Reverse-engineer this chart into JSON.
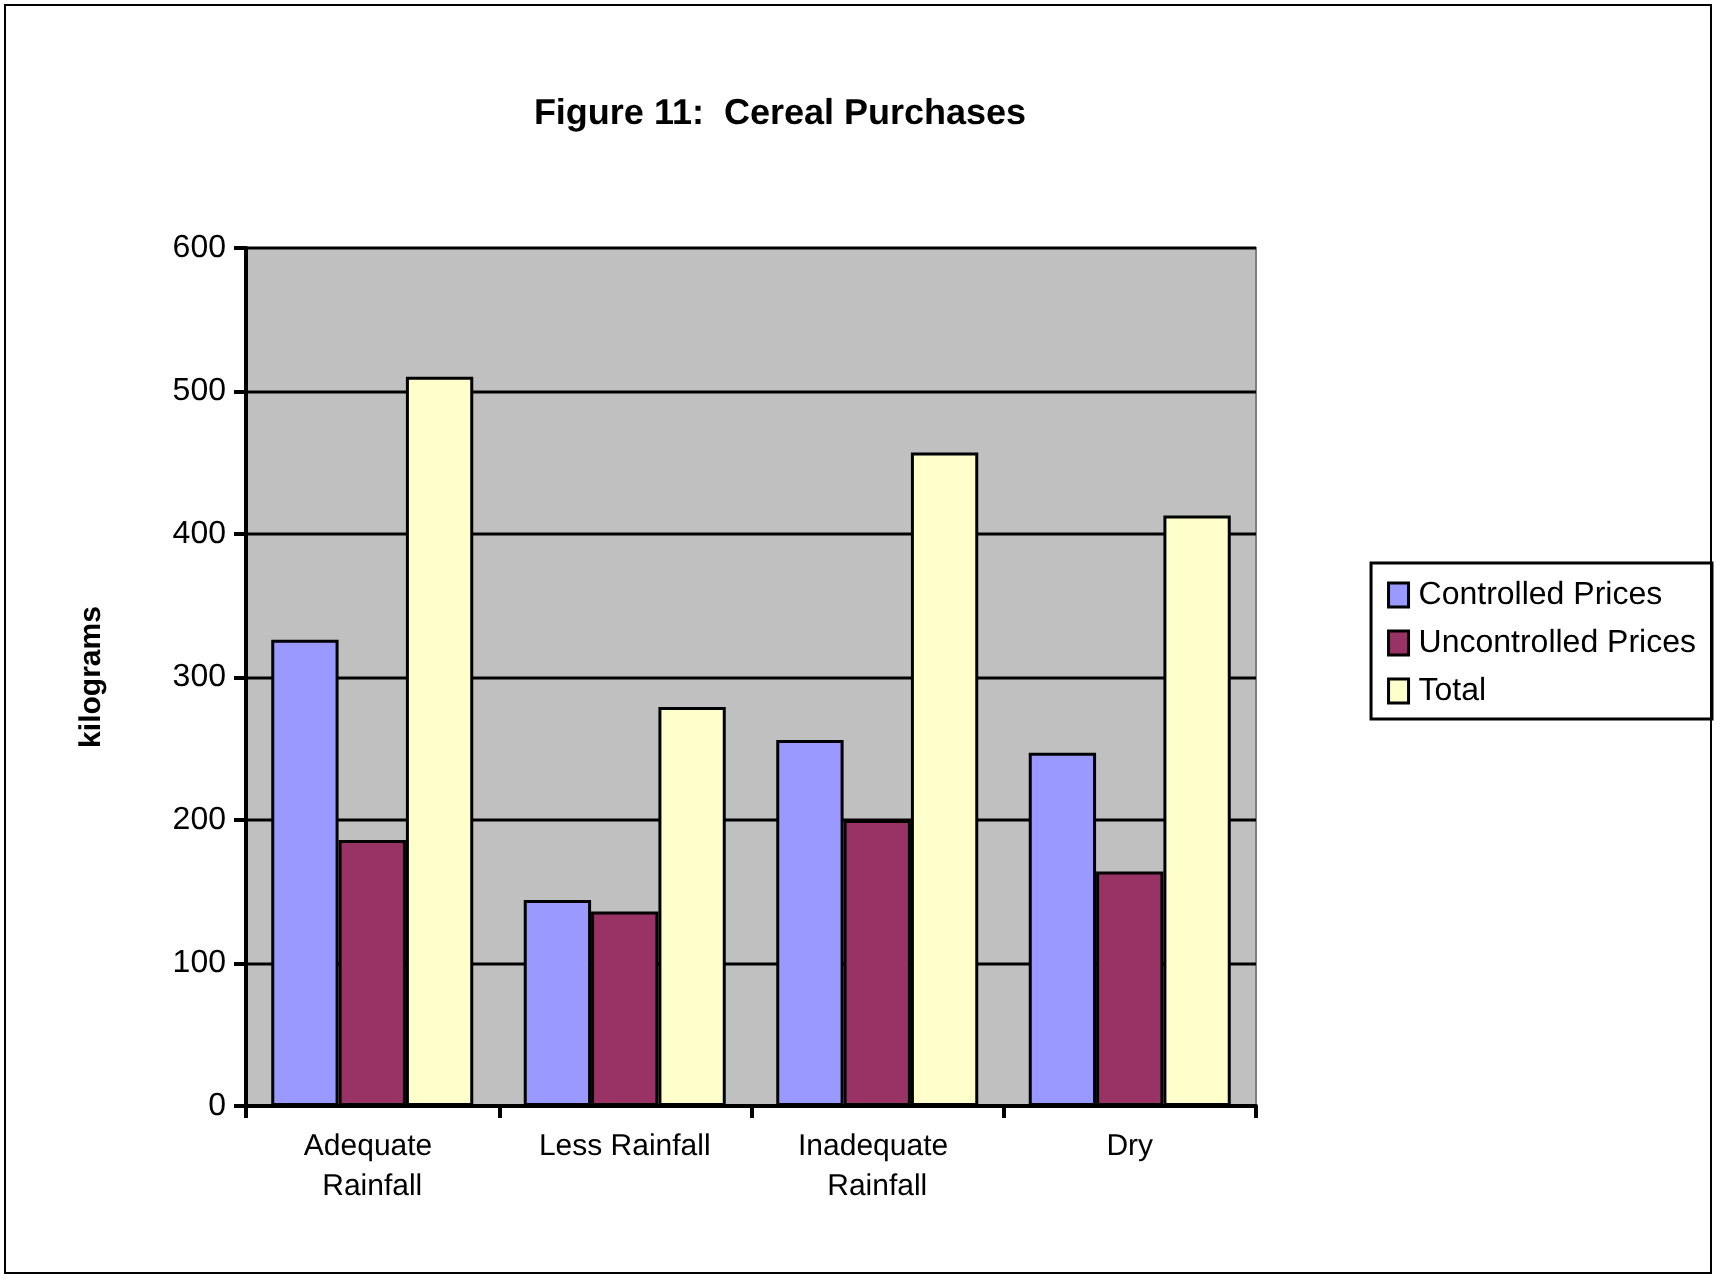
{
  "chart_data": {
    "type": "bar",
    "title": "Figure 11:  Cereal Purchases",
    "ylabel": "kilograms",
    "categories": [
      "Adequate Rainfall",
      "Less Rainfall",
      "Inadequate Rainfall",
      "Dry"
    ],
    "series": [
      {
        "name": "Controlled Prices",
        "color": "#9999ff",
        "values": [
          326,
          144,
          256,
          247
        ]
      },
      {
        "name": "Uncontrolled Prices",
        "color": "#993366",
        "values": [
          186,
          136,
          200,
          164
        ]
      },
      {
        "name": "Total",
        "color": "#ffffcc",
        "values": [
          510,
          279,
          457,
          413
        ]
      }
    ],
    "ylim": [
      0,
      600
    ],
    "yticks": [
      0,
      100,
      200,
      300,
      400,
      500,
      600
    ],
    "grid": "y",
    "legend": "right"
  }
}
